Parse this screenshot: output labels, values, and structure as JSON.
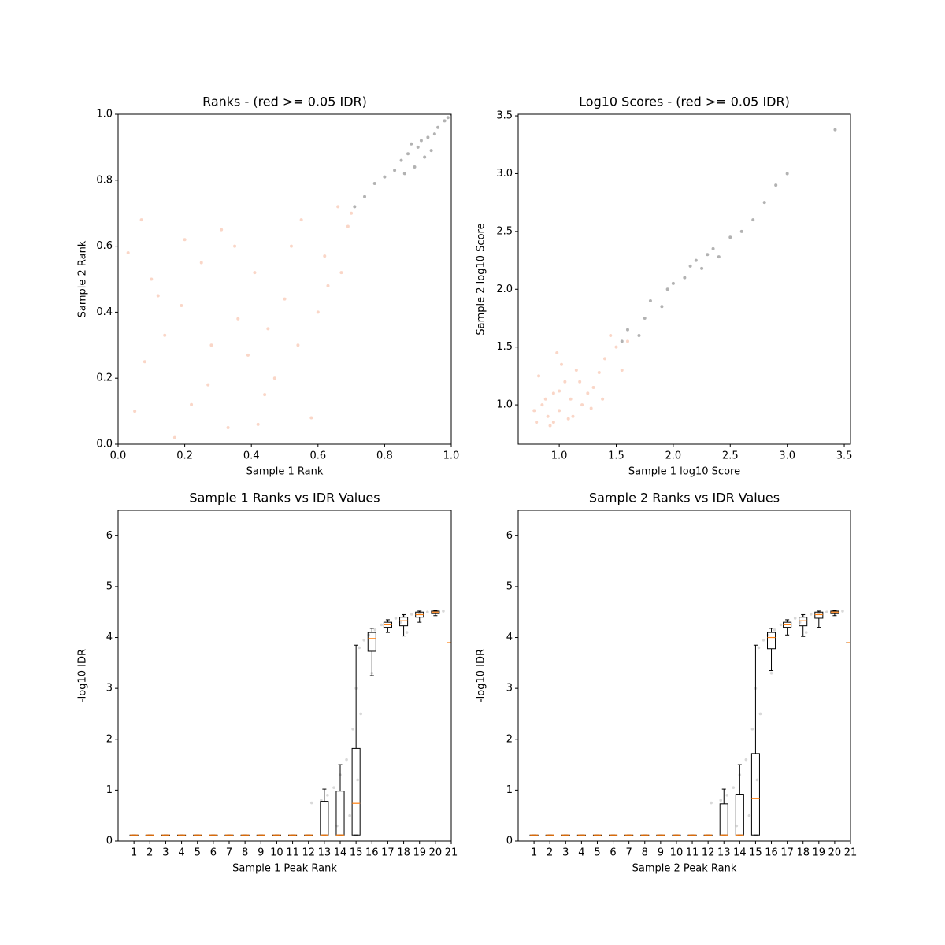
{
  "chart_data": [
    {
      "type": "scatter",
      "title": "Ranks - (red >= 0.05 IDR)",
      "xlabel": "Sample 1 Rank",
      "ylabel": "Sample 2 Rank",
      "xlim": [
        0,
        1
      ],
      "ylim": [
        0,
        1
      ],
      "xticks": [
        {
          "value": 0,
          "label": "0.0"
        },
        0.2,
        0.4,
        0.6,
        0.8,
        {
          "value": 1,
          "label": "1.0"
        }
      ],
      "yticks": [
        {
          "value": 0,
          "label": "0.0"
        },
        0.2,
        0.4,
        0.6,
        0.8,
        {
          "value": 1,
          "label": "1.0"
        }
      ],
      "series": [
        {
          "color": "#f4a582",
          "x": [
            0.05,
            0.12,
            0.2,
            0.28,
            0.33,
            0.41,
            0.47,
            0.55,
            0.6,
            0.66,
            0.08,
            0.17,
            0.25,
            0.36,
            0.44,
            0.52,
            0.63,
            0.69,
            0.03,
            0.14,
            0.22,
            0.31,
            0.39,
            0.5,
            0.58,
            0.7,
            0.1,
            0.27,
            0.45,
            0.62,
            0.35,
            0.19,
            0.54,
            0.67,
            0.07,
            0.42
          ],
          "values": [
            0.1,
            0.45,
            0.62,
            0.3,
            0.05,
            0.52,
            0.2,
            0.68,
            0.4,
            0.72,
            0.25,
            0.02,
            0.55,
            0.38,
            0.15,
            0.6,
            0.48,
            0.66,
            0.58,
            0.33,
            0.12,
            0.65,
            0.27,
            0.44,
            0.08,
            0.7,
            0.5,
            0.18,
            0.35,
            0.57,
            0.6,
            0.42,
            0.3,
            0.52,
            0.68,
            0.06
          ]
        },
        {
          "color": "#000000",
          "x": [
            0.71,
            0.74,
            0.77,
            0.8,
            0.83,
            0.85,
            0.87,
            0.89,
            0.9,
            0.92,
            0.93,
            0.95,
            0.96,
            0.98,
            0.99,
            1.0,
            0.86,
            0.88,
            0.91,
            0.94
          ],
          "values": [
            0.72,
            0.75,
            0.79,
            0.81,
            0.83,
            0.86,
            0.88,
            0.84,
            0.9,
            0.87,
            0.93,
            0.94,
            0.96,
            0.98,
            0.99,
            1.0,
            0.82,
            0.91,
            0.92,
            0.89
          ]
        }
      ]
    },
    {
      "type": "scatter",
      "title": "Log10 Scores - (red >= 0.05 IDR)",
      "xlabel": "Sample 1 log10 Score",
      "ylabel": "Sample 2 log10 Score",
      "xlim": [
        0.64,
        3.555
      ],
      "ylim": [
        0.66,
        3.514
      ],
      "xticks": [
        {
          "value": 1,
          "label": "1.0"
        },
        1.5,
        {
          "value": 2,
          "label": "2.0"
        },
        2.5,
        {
          "value": 3,
          "label": "3.0"
        },
        3.5
      ],
      "yticks": [
        {
          "value": 1,
          "label": "1.0"
        },
        1.5,
        {
          "value": 2,
          "label": "2.0"
        },
        2.5,
        {
          "value": 3,
          "label": "3.0"
        },
        3.5
      ],
      "series": [
        {
          "color": "#f4a582",
          "x": [
            0.8,
            0.85,
            0.9,
            0.95,
            1.0,
            1.05,
            1.1,
            1.15,
            1.2,
            1.3,
            1.4,
            1.5,
            0.82,
            0.92,
            1.02,
            1.12,
            1.25,
            1.35,
            0.88,
            0.98,
            1.08,
            1.18,
            1.45,
            1.6,
            0.78,
            1.28,
            1.38,
            1.55,
            0.95,
            1.0
          ],
          "values": [
            0.85,
            1.0,
            0.9,
            1.1,
            0.95,
            1.2,
            1.05,
            1.3,
            1.0,
            1.15,
            1.4,
            1.5,
            1.25,
            0.82,
            1.35,
            0.9,
            1.1,
            1.28,
            1.05,
            1.45,
            0.88,
            1.2,
            1.6,
            1.55,
            0.95,
            0.97,
            1.05,
            1.3,
            0.85,
            1.12
          ]
        },
        {
          "color": "#000000",
          "x": [
            1.55,
            1.6,
            1.7,
            1.75,
            1.8,
            1.9,
            1.95,
            2.0,
            2.1,
            2.15,
            2.2,
            2.25,
            2.3,
            2.35,
            2.4,
            2.5,
            2.6,
            2.7,
            2.8,
            2.9,
            3.0,
            3.42
          ],
          "values": [
            1.55,
            1.65,
            1.6,
            1.75,
            1.9,
            1.85,
            2.0,
            2.05,
            2.1,
            2.2,
            2.25,
            2.18,
            2.3,
            2.35,
            2.28,
            2.45,
            2.5,
            2.6,
            2.75,
            2.9,
            3.0,
            3.38
          ]
        }
      ]
    },
    {
      "type": "box",
      "title": "Sample 1 Ranks vs IDR Values",
      "xlabel": "Sample 1 Peak Rank",
      "ylabel": "-log10 IDR",
      "xlim": [
        0,
        21
      ],
      "ylim": [
        0,
        6.5
      ],
      "xticks": [
        1,
        2,
        3,
        4,
        5,
        6,
        7,
        8,
        9,
        10,
        11,
        12,
        13,
        14,
        15,
        16,
        17,
        18,
        19,
        20,
        21
      ],
      "yticks": [
        0,
        1,
        2,
        3,
        4,
        5,
        6
      ],
      "points": {
        "color": "#808080",
        "x": [
          12.2,
          12.8,
          13.2,
          13.6,
          14.0,
          14.4,
          14.8,
          15.0,
          15.2,
          15.5,
          15.8,
          16.2,
          16.6,
          17.0,
          17.5,
          18.0,
          18.5,
          19.0,
          19.5,
          20.0,
          20.5,
          14.6,
          15.3,
          16.0,
          18.2,
          13.8,
          15.1,
          17.8
        ],
        "values": [
          0.75,
          0.8,
          0.9,
          1.05,
          1.3,
          1.6,
          2.2,
          3.0,
          3.8,
          3.95,
          4.05,
          4.15,
          4.25,
          4.32,
          4.38,
          4.42,
          4.46,
          4.48,
          4.5,
          4.52,
          4.52,
          0.5,
          2.5,
          3.3,
          4.1,
          0.3,
          1.2,
          4.3
        ]
      },
      "x": [
        1,
        2,
        3,
        4,
        5,
        6,
        7,
        8,
        9,
        10,
        11,
        12,
        13,
        14,
        15,
        16,
        17,
        18,
        19,
        20,
        21
      ],
      "boxes": [
        {
          "whislo": 0.12,
          "q1": 0.12,
          "med": 0.12,
          "q3": 0.12,
          "whishi": 0.12
        },
        {
          "whislo": 0.12,
          "q1": 0.12,
          "med": 0.12,
          "q3": 0.12,
          "whishi": 0.12
        },
        {
          "whislo": 0.12,
          "q1": 0.12,
          "med": 0.12,
          "q3": 0.12,
          "whishi": 0.12
        },
        {
          "whislo": 0.12,
          "q1": 0.12,
          "med": 0.12,
          "q3": 0.12,
          "whishi": 0.12
        },
        {
          "whislo": 0.12,
          "q1": 0.12,
          "med": 0.12,
          "q3": 0.12,
          "whishi": 0.12
        },
        {
          "whislo": 0.12,
          "q1": 0.12,
          "med": 0.12,
          "q3": 0.12,
          "whishi": 0.12
        },
        {
          "whislo": 0.12,
          "q1": 0.12,
          "med": 0.12,
          "q3": 0.12,
          "whishi": 0.12
        },
        {
          "whislo": 0.12,
          "q1": 0.12,
          "med": 0.12,
          "q3": 0.12,
          "whishi": 0.12
        },
        {
          "whislo": 0.12,
          "q1": 0.12,
          "med": 0.12,
          "q3": 0.12,
          "whishi": 0.12
        },
        {
          "whislo": 0.12,
          "q1": 0.12,
          "med": 0.12,
          "q3": 0.12,
          "whishi": 0.12
        },
        {
          "whislo": 0.12,
          "q1": 0.12,
          "med": 0.12,
          "q3": 0.12,
          "whishi": 0.12
        },
        {
          "whislo": 0.12,
          "q1": 0.12,
          "med": 0.12,
          "q3": 0.12,
          "whishi": 0.12
        },
        {
          "whislo": 0.12,
          "q1": 0.12,
          "med": 0.12,
          "q3": 0.78,
          "whishi": 1.02
        },
        {
          "whislo": 0.12,
          "q1": 0.12,
          "med": 0.12,
          "q3": 0.98,
          "whishi": 1.5
        },
        {
          "whislo": 0.12,
          "q1": 0.12,
          "med": 0.74,
          "q3": 1.82,
          "whishi": 3.85
        },
        {
          "whislo": 3.25,
          "q1": 3.73,
          "med": 3.98,
          "q3": 4.1,
          "whishi": 4.18
        },
        {
          "whislo": 4.1,
          "q1": 4.2,
          "med": 4.25,
          "q3": 4.3,
          "whishi": 4.35
        },
        {
          "whislo": 4.03,
          "q1": 4.23,
          "med": 4.33,
          "q3": 4.4,
          "whishi": 4.45
        },
        {
          "whislo": 4.3,
          "q1": 4.4,
          "med": 4.45,
          "q3": 4.5,
          "whishi": 4.52
        },
        {
          "whislo": 4.43,
          "q1": 4.47,
          "med": 4.5,
          "q3": 4.52,
          "whishi": 4.53
        },
        {
          "whislo": 3.9,
          "q1": 3.9,
          "med": 3.9,
          "q3": 3.9,
          "whishi": 3.9
        }
      ]
    },
    {
      "type": "box",
      "title": "Sample 2 Ranks vs IDR Values",
      "xlabel": "Sample 2 Peak Rank",
      "ylabel": "-log10 IDR",
      "xlim": [
        0,
        21
      ],
      "ylim": [
        0,
        6.5
      ],
      "xticks": [
        1,
        2,
        3,
        4,
        5,
        6,
        7,
        8,
        9,
        10,
        11,
        12,
        13,
        14,
        15,
        16,
        17,
        18,
        19,
        20,
        21
      ],
      "yticks": [
        0,
        1,
        2,
        3,
        4,
        5,
        6
      ],
      "points": {
        "color": "#808080",
        "x": [
          12.2,
          12.8,
          13.2,
          13.6,
          14.0,
          14.4,
          14.8,
          15.0,
          15.2,
          15.5,
          15.8,
          16.2,
          16.6,
          17.0,
          17.5,
          18.0,
          18.5,
          19.0,
          19.5,
          20.0,
          20.5,
          14.6,
          15.3,
          16.0,
          18.2,
          13.8,
          15.1,
          17.8
        ],
        "values": [
          0.75,
          0.8,
          0.9,
          1.05,
          1.3,
          1.6,
          2.2,
          3.0,
          3.8,
          3.95,
          4.05,
          4.15,
          4.25,
          4.32,
          4.38,
          4.42,
          4.46,
          4.48,
          4.5,
          4.52,
          4.52,
          0.5,
          2.5,
          3.3,
          4.1,
          0.3,
          1.2,
          4.3
        ]
      },
      "x": [
        1,
        2,
        3,
        4,
        5,
        6,
        7,
        8,
        9,
        10,
        11,
        12,
        13,
        14,
        15,
        16,
        17,
        18,
        19,
        20,
        21
      ],
      "boxes": [
        {
          "whislo": 0.12,
          "q1": 0.12,
          "med": 0.12,
          "q3": 0.12,
          "whishi": 0.12
        },
        {
          "whislo": 0.12,
          "q1": 0.12,
          "med": 0.12,
          "q3": 0.12,
          "whishi": 0.12
        },
        {
          "whislo": 0.12,
          "q1": 0.12,
          "med": 0.12,
          "q3": 0.12,
          "whishi": 0.12
        },
        {
          "whislo": 0.12,
          "q1": 0.12,
          "med": 0.12,
          "q3": 0.12,
          "whishi": 0.12
        },
        {
          "whislo": 0.12,
          "q1": 0.12,
          "med": 0.12,
          "q3": 0.12,
          "whishi": 0.12
        },
        {
          "whislo": 0.12,
          "q1": 0.12,
          "med": 0.12,
          "q3": 0.12,
          "whishi": 0.12
        },
        {
          "whislo": 0.12,
          "q1": 0.12,
          "med": 0.12,
          "q3": 0.12,
          "whishi": 0.12
        },
        {
          "whislo": 0.12,
          "q1": 0.12,
          "med": 0.12,
          "q3": 0.12,
          "whishi": 0.12
        },
        {
          "whislo": 0.12,
          "q1": 0.12,
          "med": 0.12,
          "q3": 0.12,
          "whishi": 0.12
        },
        {
          "whislo": 0.12,
          "q1": 0.12,
          "med": 0.12,
          "q3": 0.12,
          "whishi": 0.12
        },
        {
          "whislo": 0.12,
          "q1": 0.12,
          "med": 0.12,
          "q3": 0.12,
          "whishi": 0.12
        },
        {
          "whislo": 0.12,
          "q1": 0.12,
          "med": 0.12,
          "q3": 0.12,
          "whishi": 0.12
        },
        {
          "whislo": 0.12,
          "q1": 0.12,
          "med": 0.12,
          "q3": 0.73,
          "whishi": 1.02
        },
        {
          "whislo": 0.12,
          "q1": 0.12,
          "med": 0.12,
          "q3": 0.92,
          "whishi": 1.5
        },
        {
          "whislo": 0.12,
          "q1": 0.12,
          "med": 0.84,
          "q3": 1.72,
          "whishi": 3.85
        },
        {
          "whislo": 3.35,
          "q1": 3.78,
          "med": 4.0,
          "q3": 4.1,
          "whishi": 4.18
        },
        {
          "whislo": 4.05,
          "q1": 4.2,
          "med": 4.25,
          "q3": 4.3,
          "whishi": 4.35
        },
        {
          "whislo": 4.02,
          "q1": 4.23,
          "med": 4.33,
          "q3": 4.4,
          "whishi": 4.45
        },
        {
          "whislo": 4.2,
          "q1": 4.38,
          "med": 4.45,
          "q3": 4.5,
          "whishi": 4.52
        },
        {
          "whislo": 4.43,
          "q1": 4.47,
          "med": 4.5,
          "q3": 4.52,
          "whishi": 4.53
        },
        {
          "whislo": 3.9,
          "q1": 3.9,
          "med": 3.9,
          "q3": 3.9,
          "whishi": 3.9
        }
      ]
    }
  ]
}
